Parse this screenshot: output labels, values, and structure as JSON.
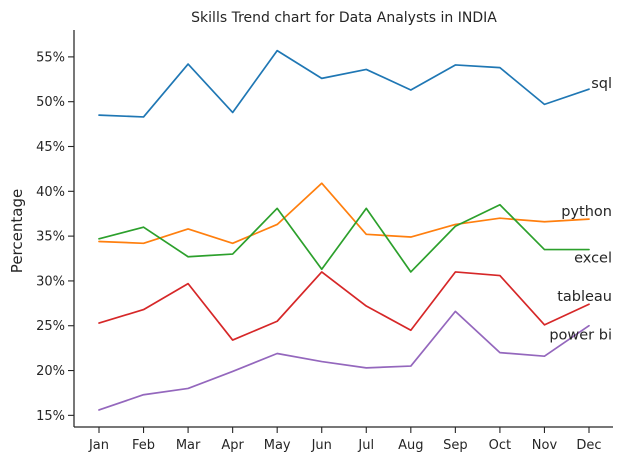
{
  "chart_data": {
    "type": "line",
    "title": "Skills Trend chart for Data Analysts in INDIA",
    "xlabel": "",
    "ylabel": "Percentage",
    "categories": [
      "Jan",
      "Feb",
      "Mar",
      "Apr",
      "May",
      "Jun",
      "Jul",
      "Aug",
      "Sep",
      "Oct",
      "Nov",
      "Dec"
    ],
    "ylim": [
      13.7,
      58.0
    ],
    "yticks": [
      15,
      20,
      25,
      30,
      35,
      40,
      45,
      50,
      55
    ],
    "ytick_labels": [
      "15%",
      "20%",
      "25%",
      "30%",
      "35%",
      "40%",
      "45%",
      "50%",
      "55%"
    ],
    "grid": false,
    "legend": "none",
    "series": [
      {
        "name": "sql",
        "color": "#1f77b4",
        "values": [
          48.5,
          48.3,
          54.2,
          48.8,
          55.7,
          52.6,
          53.6,
          51.3,
          54.1,
          53.8,
          49.7,
          51.4
        ]
      },
      {
        "name": "python",
        "color": "#ff7f0e",
        "values": [
          34.4,
          34.2,
          35.8,
          34.2,
          36.3,
          40.9,
          35.2,
          34.9,
          36.3,
          37.0,
          36.6,
          36.9
        ]
      },
      {
        "name": "excel",
        "color": "#2ca02c",
        "values": [
          34.7,
          36.0,
          32.7,
          33.0,
          38.1,
          31.3,
          38.1,
          31.0,
          36.1,
          38.5,
          33.5,
          33.5
        ]
      },
      {
        "name": "tableau",
        "color": "#d62728",
        "values": [
          25.3,
          26.8,
          29.7,
          23.4,
          25.5,
          31.0,
          27.2,
          24.5,
          31.0,
          30.6,
          25.1,
          27.4
        ]
      },
      {
        "name": "power bi",
        "color": "#9467bd",
        "values": [
          15.6,
          17.3,
          18.0,
          19.9,
          21.9,
          21.0,
          20.3,
          20.5,
          26.6,
          22.0,
          21.6,
          25.0
        ]
      }
    ]
  }
}
